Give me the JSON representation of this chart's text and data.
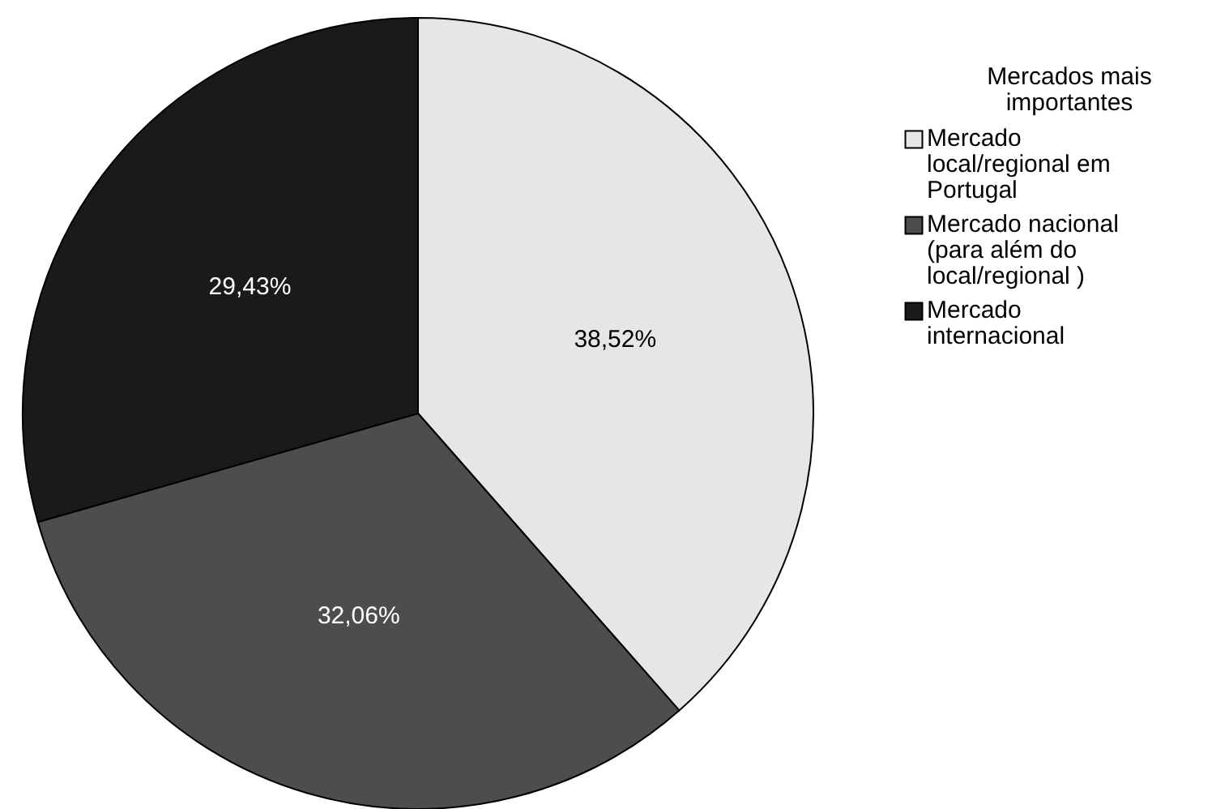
{
  "chart_data": {
    "type": "pie",
    "legend_title": "Mercados mais importantes",
    "legend": "right",
    "categories": [
      "Mercado local/regional em Portugal",
      "Mercado nacional (para além do local/regional )",
      "Mercado internacional"
    ],
    "values": [
      38.52,
      32.06,
      29.43
    ],
    "colors": [
      "#e6e6e6",
      "#4d4d4d",
      "#1a1a1a"
    ],
    "value_labels": [
      "38,52%",
      "32,06%",
      "29,43%"
    ]
  }
}
